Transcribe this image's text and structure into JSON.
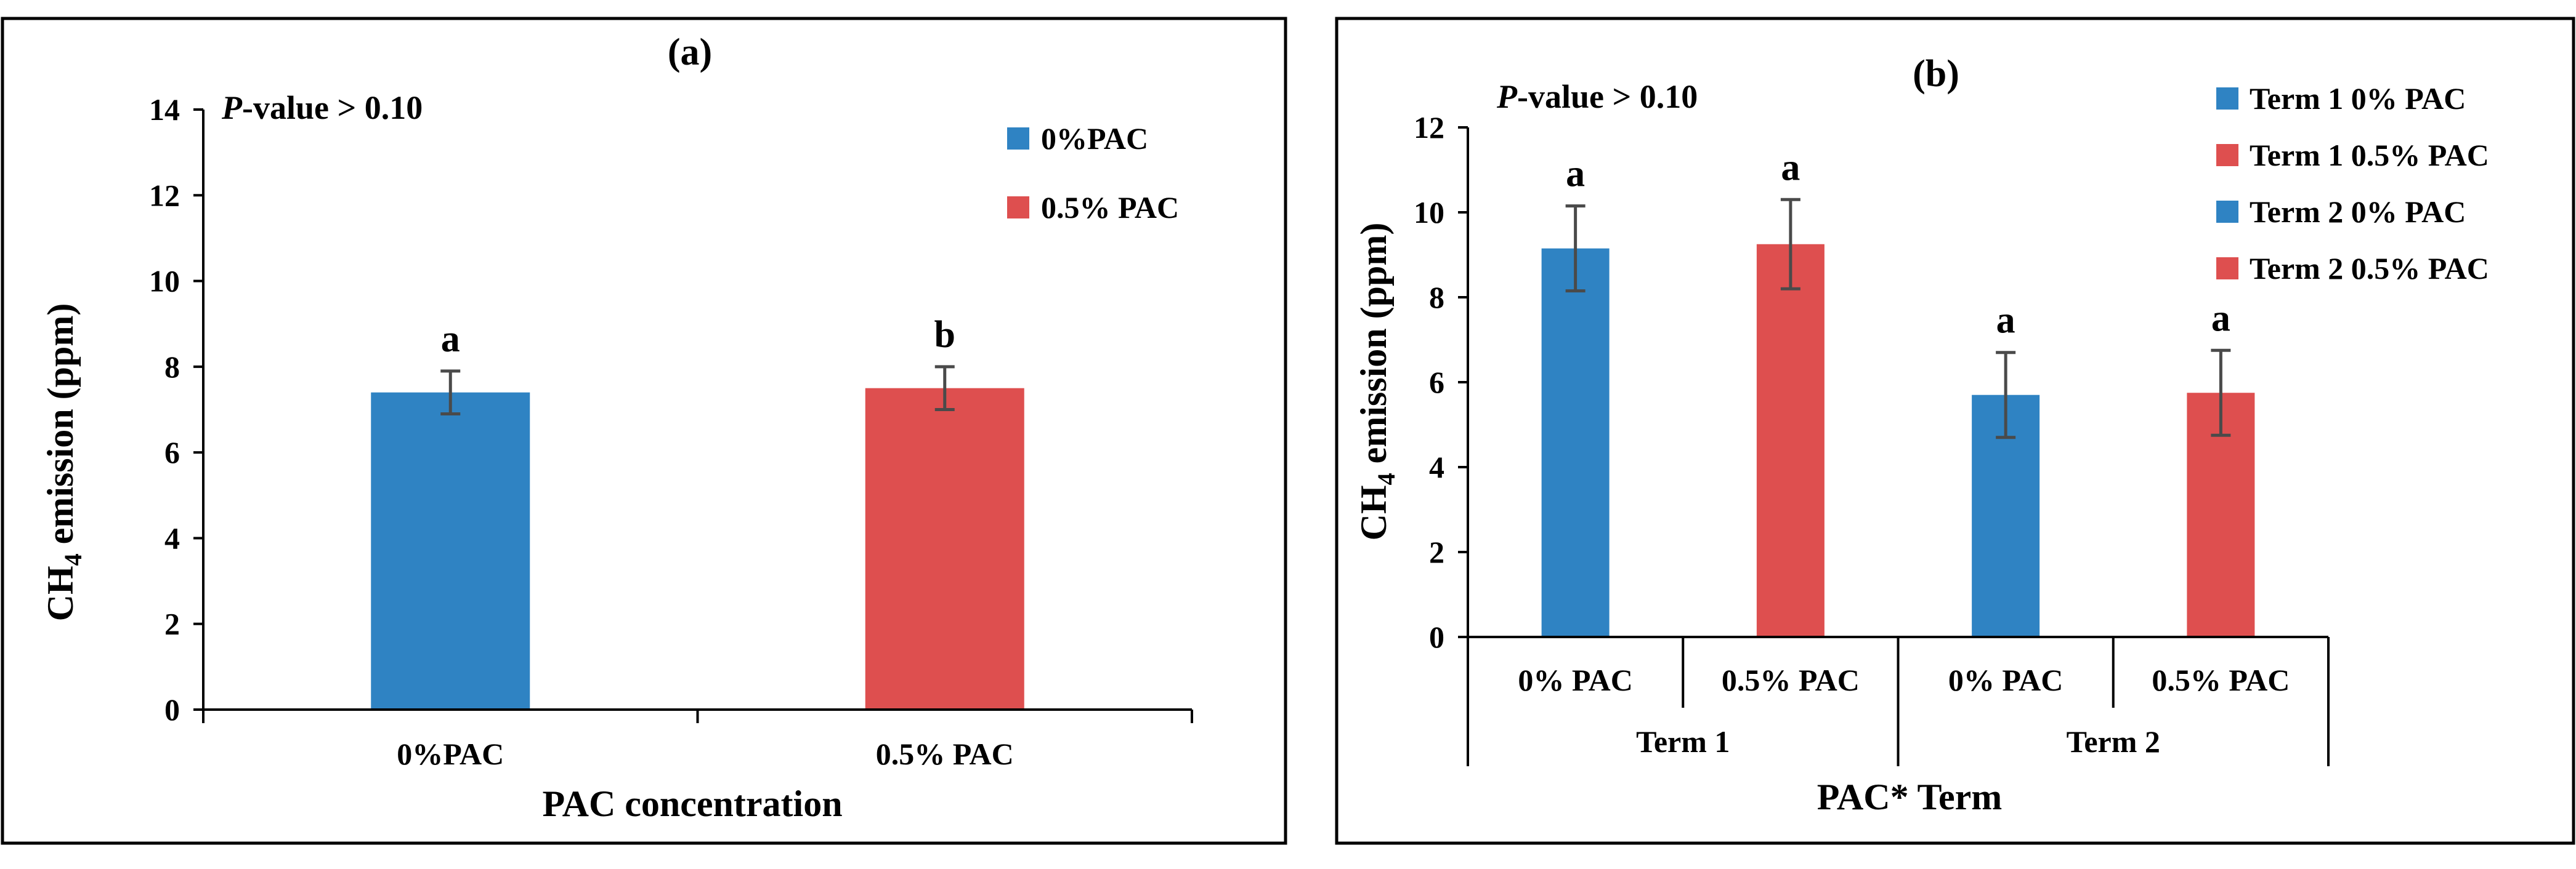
{
  "colors": {
    "blue": "#2f83c3",
    "red": "#de4f4f",
    "err": "#4a4a4a",
    "axis": "#000000"
  },
  "chart_data": [
    {
      "type": "bar",
      "title": "(a)",
      "annotation_prefix": "P",
      "annotation_suffix": "-value > 0.10",
      "xlabel": "PAC concentration",
      "ylabel": "CH4 emission (ppm)",
      "ylabel_main": "CH",
      "ylabel_sub": "4",
      "ylabel_rest": " emission (ppm)",
      "ylim": [
        0,
        14
      ],
      "yticks": [
        0,
        2,
        4,
        6,
        8,
        10,
        12,
        14
      ],
      "yticklabels": [
        "0",
        "2",
        "4",
        "6",
        "8",
        "10",
        "12",
        "14"
      ],
      "categories": [
        "0%PAC",
        "0.5% PAC"
      ],
      "values": [
        7.4,
        7.5
      ],
      "errors": [
        0.5,
        0.5
      ],
      "letters": [
        "a",
        "b"
      ],
      "colors": [
        "#2f83c3",
        "#de4f4f"
      ],
      "legend": [
        {
          "label": "0%PAC",
          "color": "#2f83c3"
        },
        {
          "label": "0.5% PAC",
          "color": "#de4f4f"
        }
      ],
      "legend_position": "top-right"
    },
    {
      "type": "bar",
      "title": "(b)",
      "annotation_prefix": "P",
      "annotation_suffix": "-value > 0.10",
      "xlabel": "PAC* Term",
      "ylabel": "CH4 emission (ppm)",
      "ylabel_main": "CH",
      "ylabel_sub": "4",
      "ylabel_rest": " emission (ppm)",
      "ylim": [
        0,
        12
      ],
      "yticks": [
        0,
        2,
        4,
        6,
        8,
        10,
        12
      ],
      "yticklabels": [
        "0",
        "2",
        "4",
        "6",
        "8",
        "10",
        "12"
      ],
      "categories": [
        "0% PAC",
        "0.5% PAC",
        "0% PAC",
        "0.5% PAC"
      ],
      "groups": [
        "Term 1",
        "Term 2"
      ],
      "values": [
        9.15,
        9.25,
        5.7,
        5.75
      ],
      "errors": [
        1.0,
        1.05,
        1.0,
        1.0
      ],
      "letters": [
        "a",
        "a",
        "a",
        "a"
      ],
      "colors": [
        "#2f83c3",
        "#de4f4f",
        "#2f83c3",
        "#de4f4f"
      ],
      "legend": [
        {
          "label": "Term 1 0% PAC",
          "color": "#2f83c3"
        },
        {
          "label": "Term 1 0.5% PAC",
          "color": "#de4f4f"
        },
        {
          "label": "Term 2 0% PAC",
          "color": "#2f83c3"
        },
        {
          "label": "Term 2 0.5% PAC",
          "color": "#de4f4f"
        }
      ],
      "legend_position": "top-right"
    }
  ]
}
